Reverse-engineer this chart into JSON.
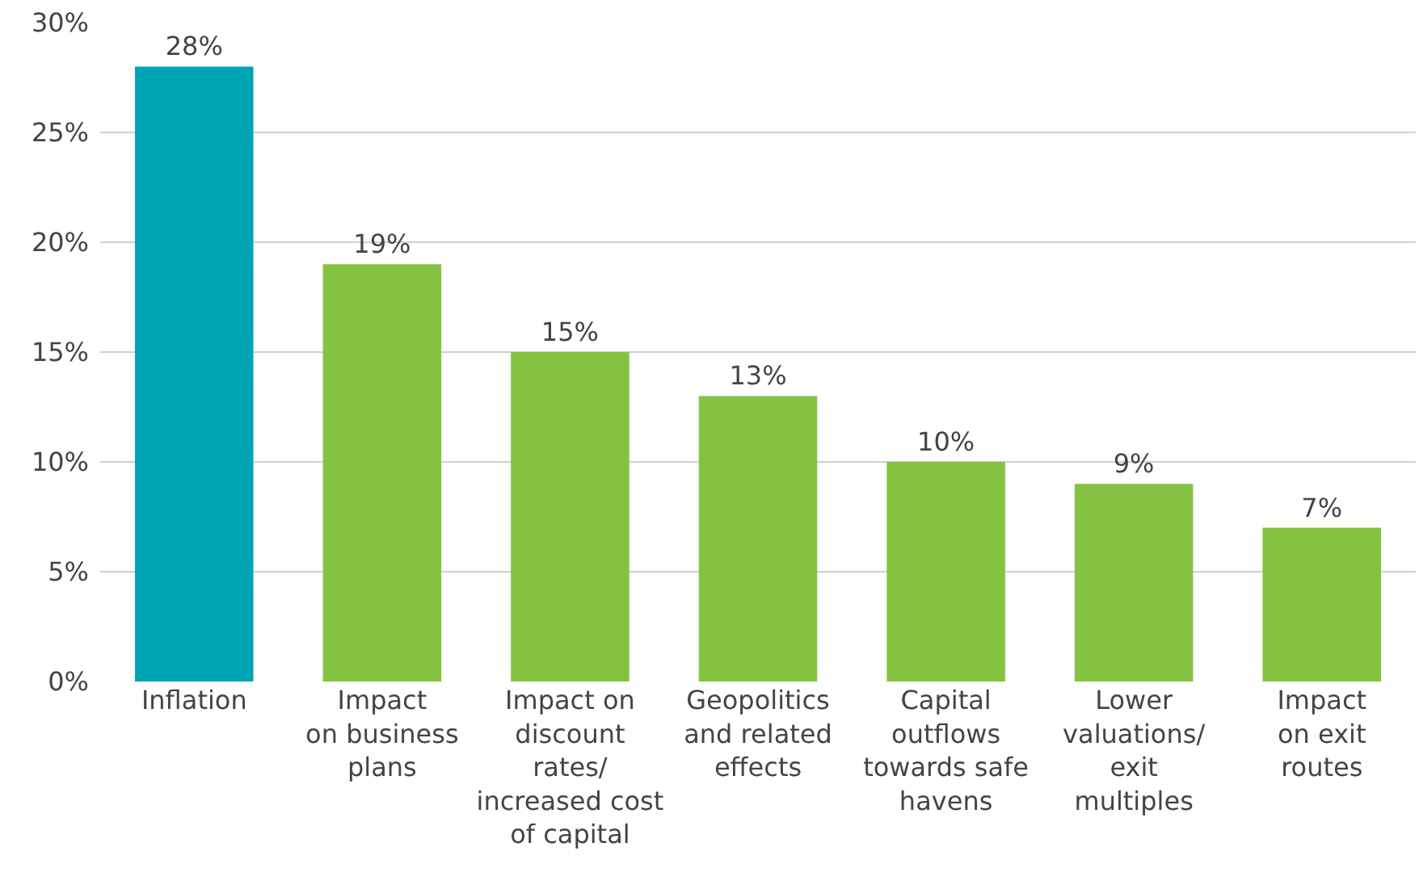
{
  "chart_data": {
    "type": "bar",
    "categories": [
      "Inflation",
      "Impact\non business\nplans",
      "Impact on\ndiscount\nrates/\nincreased cost\nof capital",
      "Geopolitics\nand related\neffects",
      "Capital\noutflows\ntowards safe\nhavens",
      "Lower\nvaluations/\nexit\nmultiples",
      "Impact\non exit\nroutes"
    ],
    "values": [
      28,
      19,
      15,
      13,
      10,
      9,
      7
    ],
    "colors": [
      "#00a5b5",
      "#84c341",
      "#84c341",
      "#84c341",
      "#84c341",
      "#84c341",
      "#84c341"
    ],
    "value_labels": [
      "28%",
      "19%",
      "15%",
      "13%",
      "10%",
      "9%",
      "7%"
    ],
    "ylim": [
      0,
      30
    ],
    "yticks": [
      {
        "value": 0,
        "label": "0%"
      },
      {
        "value": 5,
        "label": "5%"
      },
      {
        "value": 10,
        "label": "10%"
      },
      {
        "value": 15,
        "label": "15%"
      },
      {
        "value": 20,
        "label": "20%"
      },
      {
        "value": 25,
        "label": "25%"
      },
      {
        "value": 30,
        "label": "30%"
      }
    ],
    "grid": "y"
  }
}
